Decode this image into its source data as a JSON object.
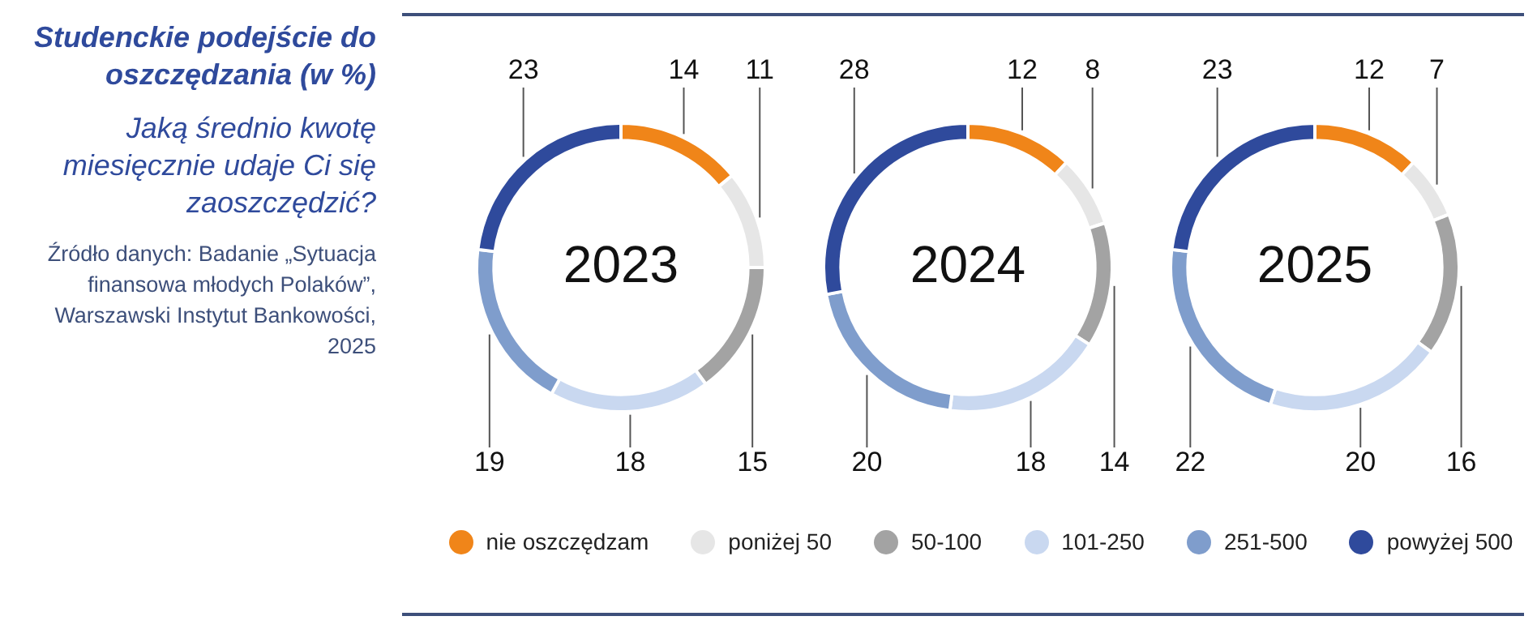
{
  "chart_data": [
    {
      "type": "other",
      "title": "Studenckie podejście do oszczędzania (w %)",
      "subtitle": "Jaką średnio kwotę miesięcznie udaje Ci się zaoszczędzić?",
      "annotations": [
        "Źródło danych: Badanie „Sytuacja finansowa młodych Polaków”, Warszawski Instytut Bankowości, 2025"
      ]
    },
    {
      "type": "donut",
      "title": "2023",
      "categories": [
        "nie oszczędzam",
        "poniżej 50",
        "50-100",
        "101-250",
        "251-500",
        "powyżej 500"
      ],
      "values": [
        14,
        11,
        15,
        18,
        19,
        23
      ],
      "colors": [
        "#f08519",
        "#e6e6e6",
        "#a3a3a3",
        "#c9d8f0",
        "#7f9dcc",
        "#2f4a9c"
      ],
      "data_labels": true,
      "legend": "bottom"
    },
    {
      "type": "donut",
      "title": "2024",
      "categories": [
        null,
        null,
        null,
        null,
        null,
        null
      ],
      "values": [
        12,
        8,
        14,
        18,
        20,
        28
      ],
      "colors": [
        "#f08519",
        "#e6e6e6",
        "#a3a3a3",
        "#c9d8f0",
        "#7f9dcc",
        "#2f4a9c"
      ],
      "data_labels": true
    },
    {
      "type": "donut",
      "title": "2025",
      "categories": [
        null,
        null,
        null,
        null,
        null,
        null
      ],
      "values": [
        12,
        7,
        16,
        20,
        22,
        23
      ],
      "colors": [
        "#f08519",
        "#e6e6e6",
        "#a3a3a3",
        "#c9d8f0",
        "#7f9dcc",
        "#2f4a9c"
      ],
      "data_labels": true
    }
  ]
}
